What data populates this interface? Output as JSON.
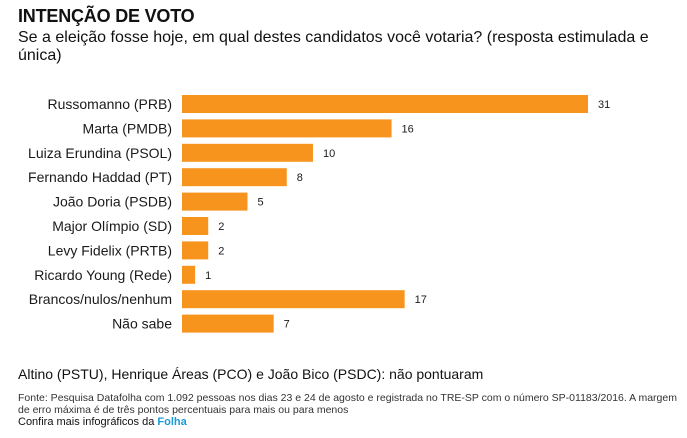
{
  "header": {
    "title": "INTENÇÃO DE VOTO",
    "subtitle": "Se a eleição fosse hoje, em qual destes candidatos você votaria? (resposta estimulada e única)"
  },
  "chart_data": {
    "type": "bar",
    "orientation": "horizontal",
    "categories": [
      "Russomanno (PRB)",
      "Marta (PMDB)",
      "Luiza Erundina (PSOL)",
      "Fernando Haddad (PT)",
      "João Doria (PSDB)",
      "Major Olímpio (SD)",
      "Levy Fidelix (PRTB)",
      "Ricardo Young (Rede)",
      "Brancos/nulos/nenhum",
      "Não sabe"
    ],
    "values": [
      31,
      16,
      10,
      8,
      5,
      2,
      2,
      1,
      17,
      7
    ],
    "xlim": [
      0,
      31
    ],
    "grid": false,
    "bar_color": "#f7941d"
  },
  "footer": {
    "note": "Altino (PSTU), Henrique Áreas (PCO) e João Bico (PSDC): não pontuaram",
    "source": "Fonte: Pesquisa Datafolha com 1.092 pessoas nos dias 23 e 24 de agosto e registrada no TRE-SP com o número SP-01183/2016. A margem de erro máxima é de três pontos percentuais para mais ou para menos",
    "more_text": "Confira mais infográficos da",
    "more_brand": "Folha"
  }
}
